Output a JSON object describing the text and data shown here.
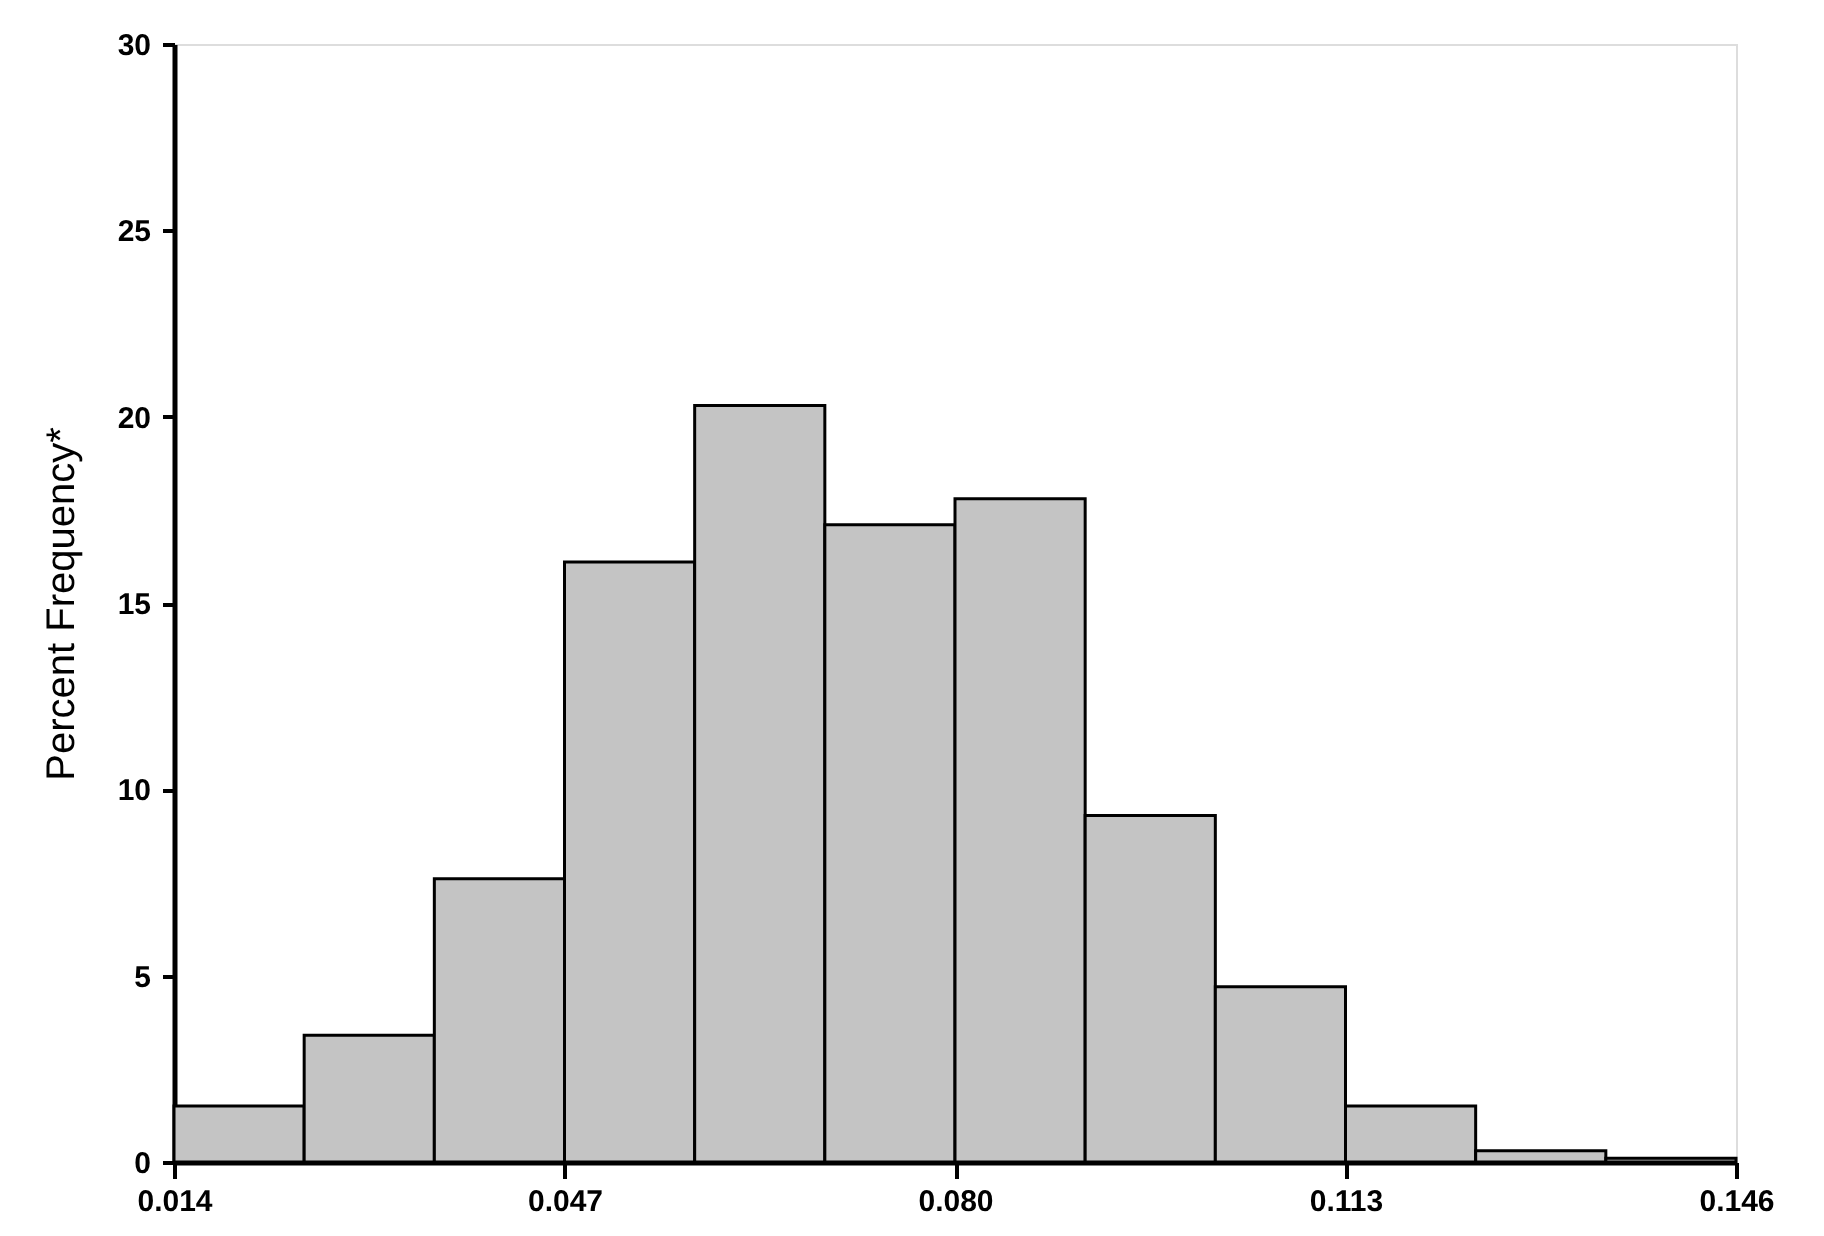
{
  "chart_data": {
    "type": "histogram",
    "ylabel": "Percent Frequency*",
    "bins": [
      0.014,
      0.025,
      0.036,
      0.047,
      0.058,
      0.069,
      0.08,
      0.091,
      0.102,
      0.113,
      0.124,
      0.135,
      0.146
    ],
    "values": [
      1.5,
      3.4,
      7.6,
      16.1,
      20.3,
      17.1,
      17.8,
      9.3,
      4.7,
      1.5,
      0.3,
      0.1
    ],
    "color": "#c4c4c4",
    "xlim": [
      0.014,
      0.146
    ],
    "xticks": [
      0.014,
      0.047,
      {
        "value": 0.08,
        "label": "0.080"
      },
      0.113,
      0.146
    ],
    "ylim": [
      0,
      30
    ],
    "yticks": [
      0,
      5,
      10,
      15,
      20,
      25,
      30
    ],
    "grid": false
  }
}
